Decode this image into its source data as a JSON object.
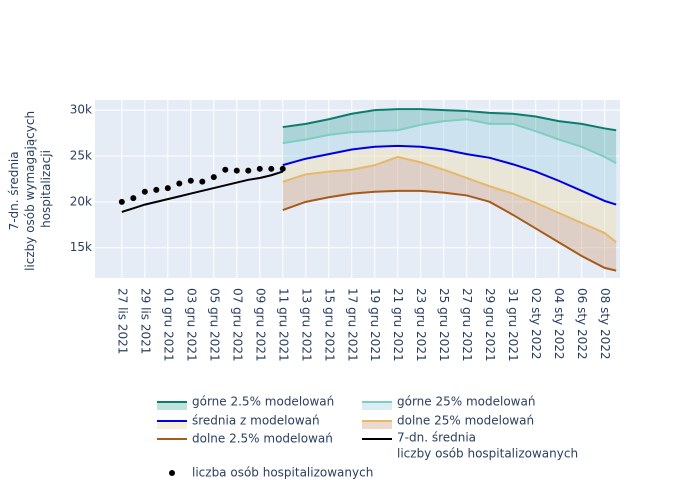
{
  "chart_data": {
    "type": "line",
    "y_title": [
      "7-dn. średnia",
      "liczby osób wymagających",
      "hospitalizacji"
    ],
    "ylim": [
      11700,
      31100
    ],
    "yticks": [
      {
        "value": 15000,
        "label": "15k"
      },
      {
        "value": 20000,
        "label": "20k"
      },
      {
        "value": 25000,
        "label": "25k"
      },
      {
        "value": 30000,
        "label": "30k"
      }
    ],
    "xlim": [
      "2021-11-24T16:00",
      "2022-01-09T08:00"
    ],
    "xticks": [
      {
        "value": "2021-11-27",
        "label": "27 lis 2021"
      },
      {
        "value": "2021-11-29",
        "label": "29 lis 2021"
      },
      {
        "value": "2021-12-01",
        "label": "01 gru 2021"
      },
      {
        "value": "2021-12-03",
        "label": "03 gru 2021"
      },
      {
        "value": "2021-12-05",
        "label": "05 gru 2021"
      },
      {
        "value": "2021-12-07",
        "label": "07 gru 2021"
      },
      {
        "value": "2021-12-09",
        "label": "09 gru 2021"
      },
      {
        "value": "2021-12-11",
        "label": "11 gru 2021"
      },
      {
        "value": "2021-12-13",
        "label": "13 gru 2021"
      },
      {
        "value": "2021-12-15",
        "label": "15 gru 2021"
      },
      {
        "value": "2021-12-17",
        "label": "17 gru 2021"
      },
      {
        "value": "2021-12-19",
        "label": "19 gru 2021"
      },
      {
        "value": "2021-12-21",
        "label": "21 gru 2021"
      },
      {
        "value": "2021-12-23",
        "label": "23 gru 2021"
      },
      {
        "value": "2021-12-25",
        "label": "25 gru 2021"
      },
      {
        "value": "2021-12-27",
        "label": "27 gru 2021"
      },
      {
        "value": "2021-12-29",
        "label": "29 gru 2021"
      },
      {
        "value": "2021-12-31",
        "label": "31 gru 2021"
      },
      {
        "value": "2022-01-02",
        "label": "02 sty 2022"
      },
      {
        "value": "2022-01-04",
        "label": "04 sty 2022"
      },
      {
        "value": "2022-01-06",
        "label": "06 sty 2022"
      },
      {
        "value": "2022-01-08",
        "label": "08 sty 2022"
      }
    ],
    "grid": true,
    "plot_background": "#e5ecf6",
    "series": [
      {
        "name": "górne 2.5% modelowań",
        "color": "#0d7d6b",
        "fill": "rgba(26,150,140,0.28)",
        "mode": "lines",
        "x": [
          "2021-12-11",
          "2021-12-13",
          "2021-12-15",
          "2021-12-17",
          "2021-12-19",
          "2021-12-21",
          "2021-12-23",
          "2021-12-25",
          "2021-12-27",
          "2021-12-29",
          "2021-12-31",
          "2022-01-02",
          "2022-01-04",
          "2022-01-06",
          "2022-01-08",
          "2022-01-09"
        ],
        "values": [
          28150,
          28500,
          29000,
          29600,
          30000,
          30100,
          30100,
          30000,
          29900,
          29700,
          29600,
          29300,
          28800,
          28500,
          28000,
          27800
        ]
      },
      {
        "name": "górne 25% modelowań",
        "color": "#7fcdc0",
        "fill": "rgba(173,216,230,0.45)",
        "mode": "lines",
        "x": [
          "2021-12-11",
          "2021-12-13",
          "2021-12-15",
          "2021-12-17",
          "2021-12-19",
          "2021-12-21",
          "2021-12-23",
          "2021-12-25",
          "2021-12-27",
          "2021-12-29",
          "2021-12-31",
          "2022-01-02",
          "2022-01-04",
          "2022-01-06",
          "2022-01-08",
          "2022-01-09"
        ],
        "values": [
          26400,
          26800,
          27300,
          27600,
          27700,
          27800,
          28400,
          28800,
          29000,
          28500,
          28500,
          27700,
          26800,
          26000,
          24900,
          24200
        ]
      },
      {
        "name": "średnia z modelowań",
        "color": "#0000e0",
        "fill": "rgba(236,226,190,0.55)",
        "mode": "lines",
        "x": [
          "2021-12-11",
          "2021-12-13",
          "2021-12-15",
          "2021-12-17",
          "2021-12-19",
          "2021-12-21",
          "2021-12-23",
          "2021-12-25",
          "2021-12-27",
          "2021-12-29",
          "2021-12-31",
          "2022-01-02",
          "2022-01-04",
          "2022-01-06",
          "2022-01-08",
          "2022-01-09"
        ],
        "values": [
          24000,
          24700,
          25200,
          25700,
          26000,
          26100,
          26000,
          25700,
          25200,
          24800,
          24100,
          23300,
          22300,
          21200,
          20100,
          19700
        ]
      },
      {
        "name": "dolne 25% modelowań",
        "color": "#e6b96a",
        "fill": "rgba(210,170,140,0.45)",
        "mode": "lines",
        "x": [
          "2021-12-11",
          "2021-12-13",
          "2021-12-15",
          "2021-12-17",
          "2021-12-19",
          "2021-12-21",
          "2021-12-23",
          "2021-12-25",
          "2021-12-27",
          "2021-12-29",
          "2021-12-31",
          "2022-01-02",
          "2022-01-04",
          "2022-01-06",
          "2022-01-08",
          "2022-01-09"
        ],
        "values": [
          22200,
          23000,
          23300,
          23500,
          24000,
          24900,
          24300,
          23500,
          22600,
          21700,
          20900,
          19900,
          18800,
          17700,
          16600,
          15600
        ]
      },
      {
        "name": "dolne 2.5% modelowań",
        "color": "#a65b1a",
        "mode": "lines",
        "x": [
          "2021-12-11",
          "2021-12-13",
          "2021-12-15",
          "2021-12-17",
          "2021-12-19",
          "2021-12-21",
          "2021-12-23",
          "2021-12-25",
          "2021-12-27",
          "2021-12-29",
          "2021-12-31",
          "2022-01-02",
          "2022-01-04",
          "2022-01-06",
          "2022-01-08",
          "2022-01-09"
        ],
        "values": [
          19100,
          20000,
          20500,
          20900,
          21100,
          21200,
          21200,
          21000,
          20700,
          20000,
          18600,
          17100,
          15600,
          14100,
          12800,
          12500
        ]
      },
      {
        "name": [
          "7-dn. średnia",
          "liczby osób hospitalizowanych"
        ],
        "color": "#000000",
        "mode": "lines",
        "x": [
          "2021-11-27",
          "2021-11-28",
          "2021-11-29",
          "2021-11-30",
          "2021-12-01",
          "2021-12-02",
          "2021-12-03",
          "2021-12-04",
          "2021-12-05",
          "2021-12-06",
          "2021-12-07",
          "2021-12-08",
          "2021-12-09",
          "2021-12-10",
          "2021-12-11"
        ],
        "values": [
          18900,
          19300,
          19700,
          20000,
          20300,
          20600,
          20900,
          21200,
          21500,
          21800,
          22100,
          22400,
          22600,
          22900,
          23300
        ]
      },
      {
        "name": "liczba osób hospitalizowanych",
        "color": "#000000",
        "mode": "markers",
        "x": [
          "2021-11-27",
          "2021-11-28",
          "2021-11-29",
          "2021-11-30",
          "2021-12-01",
          "2021-12-02",
          "2021-12-03",
          "2021-12-04",
          "2021-12-05",
          "2021-12-06",
          "2021-12-07",
          "2021-12-08",
          "2021-12-09",
          "2021-12-10",
          "2021-12-11"
        ],
        "values": [
          20000,
          20400,
          21100,
          21300,
          21500,
          22000,
          22300,
          22200,
          22700,
          23500,
          23400,
          23400,
          23600,
          23600,
          23600
        ]
      }
    ]
  }
}
